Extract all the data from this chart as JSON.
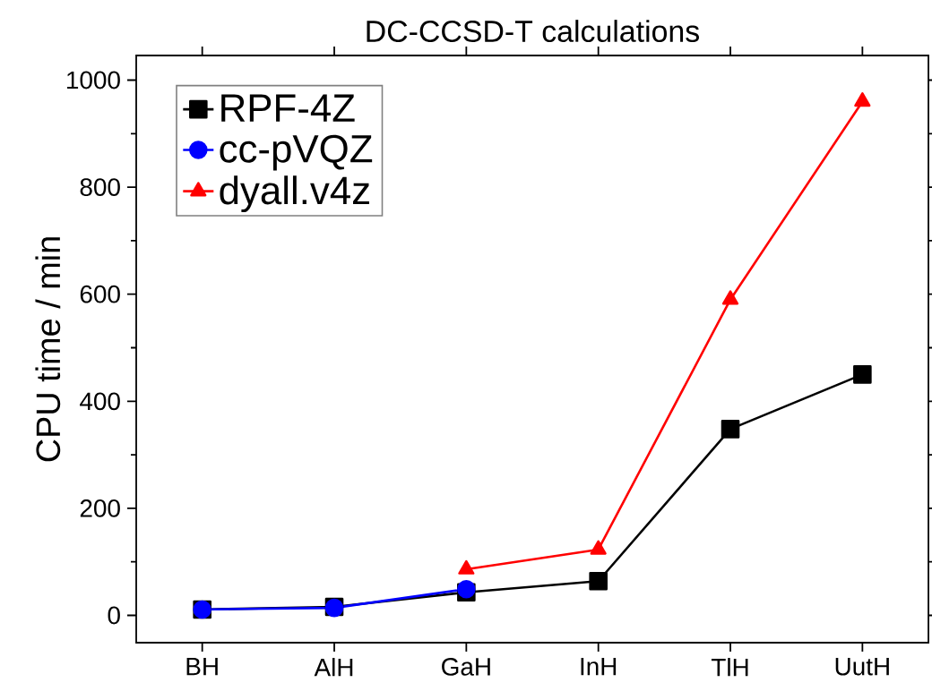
{
  "chart_data": {
    "type": "line",
    "title": "DC-CCSD-T calculations",
    "ylabel": "CPU time / min",
    "categories": [
      "BH",
      "AlH",
      "GaH",
      "InH",
      "TlH",
      "UutH"
    ],
    "series": [
      {
        "name": "RPF-4Z",
        "color": "#000000",
        "marker": "square",
        "values": [
          11,
          16,
          43,
          64,
          348,
          450
        ]
      },
      {
        "name": "cc-pVQZ",
        "color": "#0000ff",
        "marker": "circle",
        "values": [
          11,
          14,
          49,
          null,
          null,
          null
        ]
      },
      {
        "name": "dyall.v4z",
        "color": "#ff0000",
        "marker": "triangle",
        "values": [
          null,
          null,
          86,
          123,
          590,
          960
        ]
      }
    ],
    "ylim": [
      -51,
      1046
    ],
    "yticks": [
      0,
      200,
      400,
      600,
      800,
      1000
    ],
    "legend": "top left",
    "line_style": "solid"
  }
}
